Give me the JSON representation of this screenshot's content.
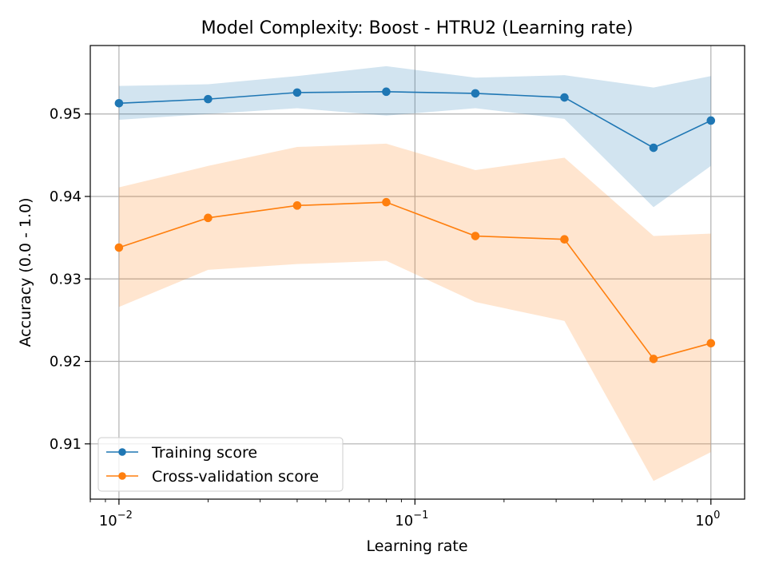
{
  "chart_data": {
    "type": "line",
    "title": "Model Complexity: Boost - HTRU2 (Learning rate)",
    "xlabel": "Learning rate",
    "ylabel": "Accuracy (0.0 - 1.0)",
    "xscale": "log",
    "xlim": [
      0.008,
      1.3
    ],
    "ylim": [
      0.9033,
      0.9583
    ],
    "grid": true,
    "legend_position": "lower-left",
    "x": [
      0.01,
      0.02,
      0.04,
      0.08,
      0.16,
      0.32,
      0.64,
      1.0
    ],
    "x_ticks": [
      {
        "value": 0.01,
        "base": "10",
        "exp": "−2"
      },
      {
        "value": 0.1,
        "base": "10",
        "exp": "−1"
      },
      {
        "value": 1.0,
        "base": "10",
        "exp": "0"
      }
    ],
    "y_ticks": [
      {
        "value": 0.91,
        "label": "0.91"
      },
      {
        "value": 0.92,
        "label": "0.92"
      },
      {
        "value": 0.93,
        "label": "0.93"
      },
      {
        "value": 0.94,
        "label": "0.94"
      },
      {
        "value": 0.95,
        "label": "0.95"
      }
    ],
    "series": [
      {
        "name": "Training score",
        "color": "#1f77b4",
        "band_color": "#1f77b4",
        "values": [
          0.9513,
          0.9518,
          0.9526,
          0.9527,
          0.9525,
          0.952,
          0.9459,
          0.9492
        ],
        "upper": [
          0.9534,
          0.9536,
          0.9546,
          0.9558,
          0.9544,
          0.9547,
          0.9532,
          0.9546
        ],
        "lower": [
          0.9493,
          0.95,
          0.9507,
          0.9498,
          0.9507,
          0.9494,
          0.9387,
          0.9437
        ]
      },
      {
        "name": "Cross-validation score",
        "color": "#ff7f0e",
        "band_color": "#ff7f0e",
        "values": [
          0.9338,
          0.9374,
          0.9389,
          0.9393,
          0.9352,
          0.9348,
          0.9203,
          0.9222
        ],
        "upper": [
          0.9411,
          0.9437,
          0.946,
          0.9464,
          0.9432,
          0.9447,
          0.9352,
          0.9355
        ],
        "lower": [
          0.9266,
          0.9311,
          0.9318,
          0.9322,
          0.9272,
          0.9249,
          0.9055,
          0.909
        ]
      }
    ]
  }
}
